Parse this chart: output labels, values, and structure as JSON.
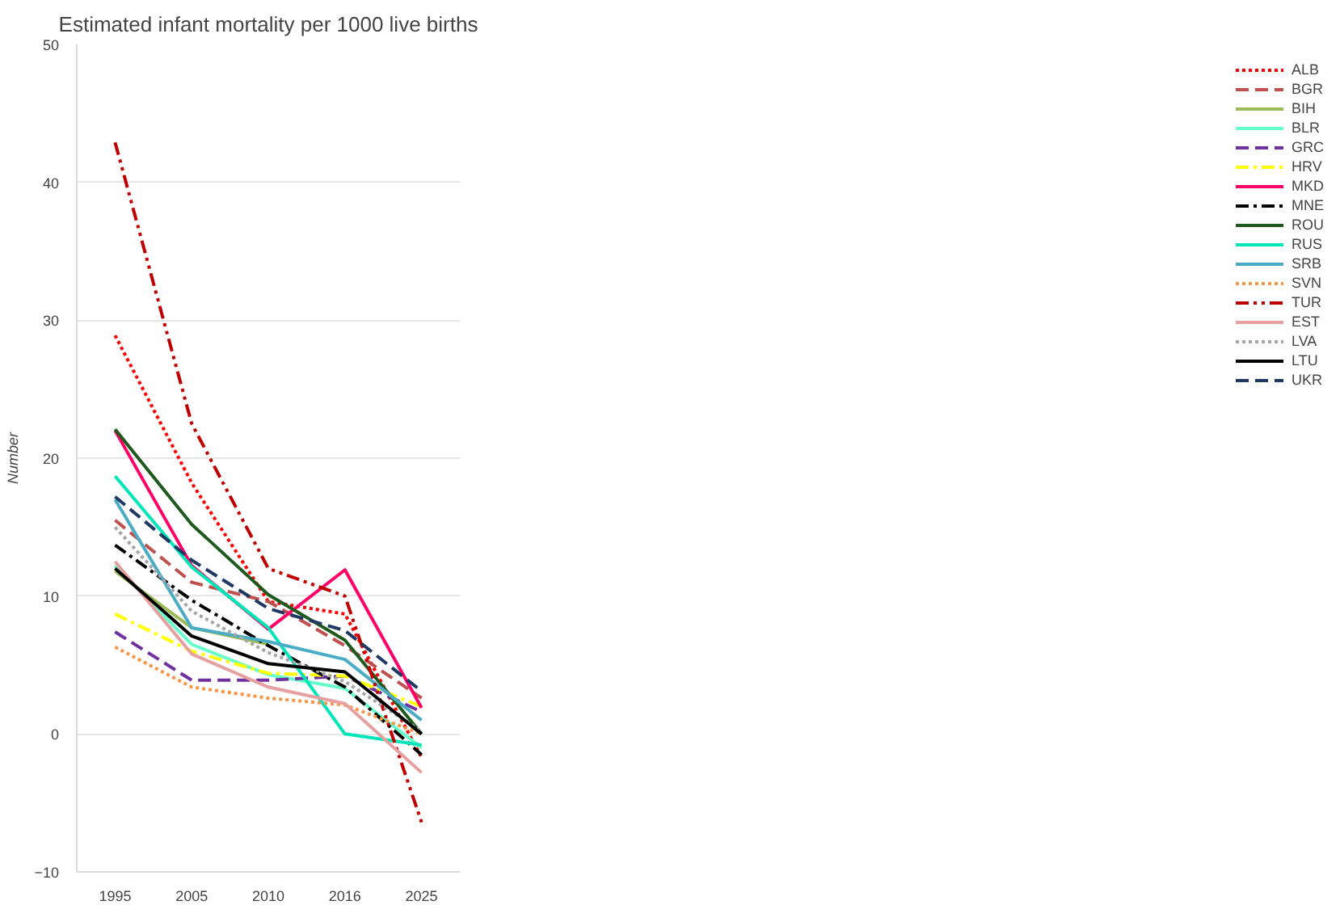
{
  "chart_data": {
    "type": "line",
    "title": "Estimated infant mortality per 1000 live births",
    "ylabel": "Number",
    "categories": [
      "1995",
      "2005",
      "2010",
      "2016",
      "2025"
    ],
    "ylim": [
      -10,
      50
    ],
    "yticks": [
      -10,
      0,
      10,
      20,
      30,
      40,
      50
    ],
    "grid": "y",
    "legend": "right",
    "marker": "none",
    "series": [
      {
        "name": "ALB",
        "color": "#ff0000",
        "line_style": "dotted",
        "values": [
          28.9,
          18.2,
          9.6,
          8.7,
          -1.7
        ]
      },
      {
        "name": "BGR",
        "color": "#c0504d",
        "line_style": "dashed",
        "values": [
          15.5,
          11.0,
          9.6,
          6.4,
          2.6
        ]
      },
      {
        "name": "BIH",
        "color": "#9bbb59",
        "line_style": "solid",
        "values": [
          11.8,
          7.7,
          6.5,
          null,
          null
        ]
      },
      {
        "name": "BLR",
        "color": "#66ffcc",
        "line_style": "solid",
        "values": [
          12.2,
          6.5,
          4.3,
          3.3,
          -1.0
        ]
      },
      {
        "name": "GRC",
        "color": "#7030a0",
        "line_style": "dashed",
        "values": [
          7.4,
          3.9,
          3.9,
          4.2,
          1.6
        ]
      },
      {
        "name": "HRV",
        "color": "#ffff00",
        "line_style": "dashdot",
        "values": [
          8.7,
          6.0,
          4.4,
          4.2,
          2.0
        ]
      },
      {
        "name": "MKD",
        "color": "#ff0066",
        "line_style": "solid",
        "values": [
          22.0,
          12.2,
          7.6,
          11.9,
          1.9
        ]
      },
      {
        "name": "MNE",
        "color": "#000000",
        "line_style": "dashdot",
        "values": [
          13.7,
          9.7,
          6.4,
          3.4,
          -1.5
        ]
      },
      {
        "name": "ROU",
        "color": "#1e5a1e",
        "line_style": "solid",
        "values": [
          22.1,
          15.2,
          10.1,
          6.8,
          0.0
        ]
      },
      {
        "name": "RUS",
        "color": "#00e6b8",
        "line_style": "solid",
        "values": [
          18.7,
          12.1,
          7.7,
          0.0,
          -0.8
        ]
      },
      {
        "name": "SRB",
        "color": "#4bacc6",
        "line_style": "solid",
        "values": [
          17.0,
          7.7,
          6.7,
          5.4,
          1.0
        ]
      },
      {
        "name": "SVN",
        "color": "#f79646",
        "line_style": "dotted",
        "values": [
          6.3,
          3.4,
          2.6,
          2.1,
          0.0
        ]
      },
      {
        "name": "TUR",
        "color": "#c00000",
        "line_style": "dashdotdot",
        "values": [
          42.9,
          22.5,
          12.0,
          10.0,
          -6.4
        ]
      },
      {
        "name": "EST",
        "color": "#e6a0a0",
        "line_style": "solid",
        "values": [
          12.5,
          5.8,
          3.4,
          2.2,
          -2.8
        ]
      },
      {
        "name": "LVA",
        "color": "#a6a6a6",
        "line_style": "dotted",
        "values": [
          15.0,
          8.9,
          5.9,
          3.8,
          0.2
        ]
      },
      {
        "name": "LTU",
        "color": "#000000",
        "line_style": "solid",
        "values": [
          12.0,
          7.1,
          5.1,
          4.5,
          0.0
        ]
      },
      {
        "name": "UKR",
        "color": "#1f3864",
        "line_style": "dashed",
        "values": [
          17.2,
          12.6,
          9.1,
          7.5,
          3.1
        ]
      }
    ]
  }
}
